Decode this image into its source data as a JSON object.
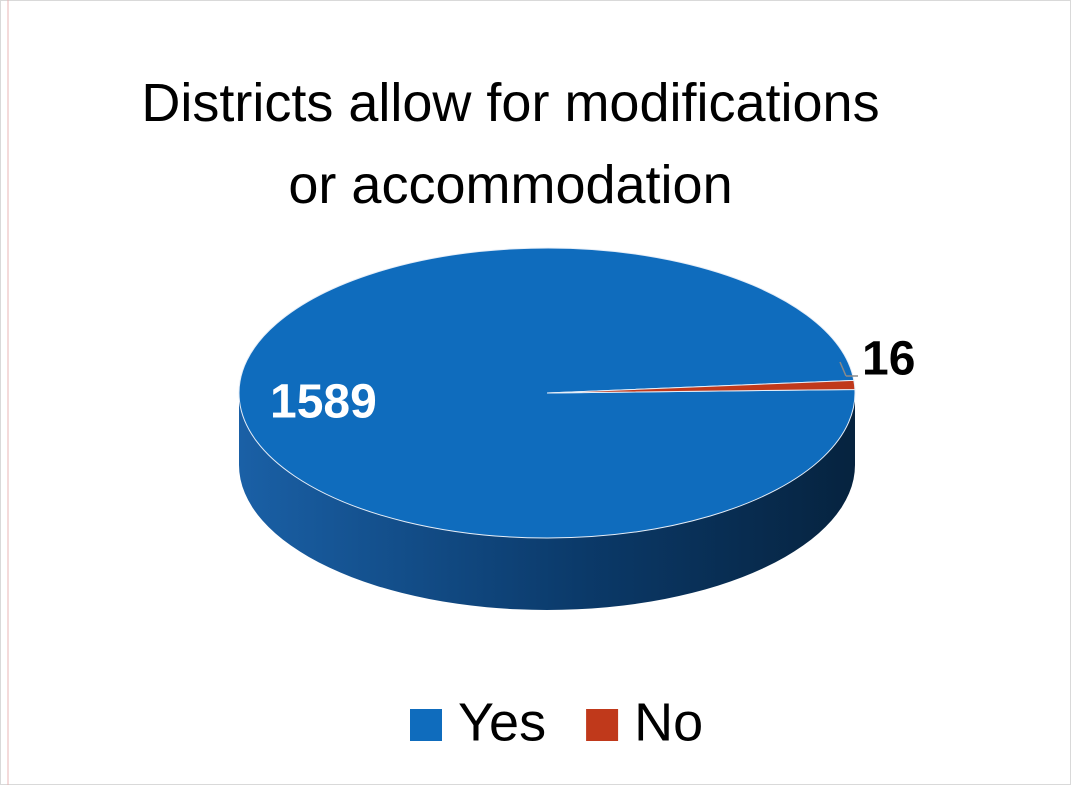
{
  "chart_data": {
    "type": "pie",
    "title": "Districts allow for modifications\nor accommodation",
    "categories": [
      "Yes",
      "No"
    ],
    "values": [
      1589,
      16
    ],
    "colors": [
      "#0f6cbd",
      "#c0391b"
    ],
    "legend": "bottom"
  }
}
